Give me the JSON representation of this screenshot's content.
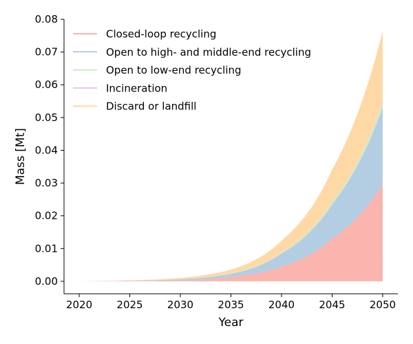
{
  "chart_data": {
    "type": "area",
    "stacked": true,
    "xlabel": "Year",
    "ylabel": "Mass [Mt]",
    "xlim": [
      2018.5,
      2051.5
    ],
    "ylim": [
      -0.0038,
      0.08
    ],
    "xticks": [
      2020,
      2025,
      2030,
      2035,
      2040,
      2045,
      2050
    ],
    "yticks": [
      0.0,
      0.01,
      0.02,
      0.03,
      0.04,
      0.05,
      0.06,
      0.07,
      0.08
    ],
    "ytick_labels": [
      "0.00",
      "0.01",
      "0.02",
      "0.03",
      "0.04",
      "0.05",
      "0.06",
      "0.07",
      "0.08"
    ],
    "grid": false,
    "legend_position": "top-left",
    "x": [
      2020,
      2025,
      2030,
      2035,
      2040,
      2045,
      2050
    ],
    "series": [
      {
        "name": "Closed-loop recycling",
        "color": "#fbb4ae",
        "values": [
          0.0,
          0.0001,
          0.0003,
          0.0013,
          0.0045,
          0.013,
          0.0295
        ]
      },
      {
        "name": "Open to high- and middle-end recycling",
        "color": "#b3cde3",
        "values": [
          0.0,
          0.0001,
          0.0003,
          0.001,
          0.004,
          0.0105,
          0.0235
        ]
      },
      {
        "name": "Open to low-end recycling",
        "color": "#ccebc5",
        "values": [
          0.0,
          0.0,
          5e-05,
          0.0001,
          0.0003,
          0.0007,
          0.0015
        ]
      },
      {
        "name": "Incineration",
        "color": "#decbe4",
        "values": [
          0.0,
          0.0,
          0.0,
          2e-05,
          5e-05,
          0.0001,
          0.0002
        ]
      },
      {
        "name": "Discard or landfill",
        "color": "#fed9a6",
        "values": [
          0.0,
          0.0001,
          0.0004,
          0.0012,
          0.0036,
          0.0098,
          0.0218
        ]
      }
    ]
  }
}
